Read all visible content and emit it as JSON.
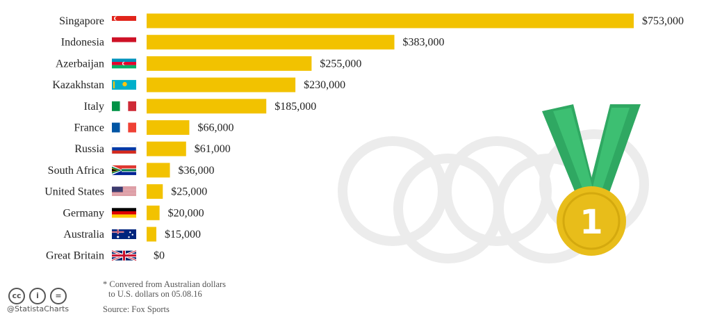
{
  "chart_data": {
    "type": "bar",
    "orientation": "horizontal",
    "categories": [
      "Singapore",
      "Indonesia",
      "Azerbaijan",
      "Kazakhstan",
      "Italy",
      "France",
      "Russia",
      "South Africa",
      "United States",
      "Germany",
      "Australia",
      "Great Britain"
    ],
    "values": [
      753000,
      383000,
      255000,
      230000,
      185000,
      66000,
      61000,
      36000,
      25000,
      20000,
      15000,
      0
    ],
    "value_labels": [
      "$753,000",
      "$383,000",
      "$255,000",
      "$230,000",
      "$185,000",
      "$66,000",
      "$61,000",
      "$36,000",
      "$25,000",
      "$20,000",
      "$15,000",
      "$0"
    ],
    "flags": [
      "singapore-flag-icon",
      "indonesia-flag-icon",
      "azerbaijan-flag-icon",
      "kazakhstan-flag-icon",
      "italy-flag-icon",
      "france-flag-icon",
      "russia-flag-icon",
      "south-africa-flag-icon",
      "united-states-flag-icon",
      "germany-flag-icon",
      "australia-flag-icon",
      "great-britain-flag-icon"
    ],
    "xlim": [
      0,
      753000
    ],
    "bar_color": "#f2c200",
    "grid": false,
    "legend": "none"
  },
  "decoration": {
    "medal_number": "1",
    "medal_icon": "gold-medal-icon",
    "rings_icon": "olympic-rings-icon",
    "ribbon_color": "#3dbf72",
    "medal_color": "#e8bd1a"
  },
  "footer": {
    "license_icons": [
      "creative-commons-icon",
      "attribution-icon",
      "no-derivatives-icon"
    ],
    "license_glyphs": [
      "cc",
      "i",
      "="
    ],
    "handle": "@StatistaCharts",
    "note_line1": "* Convered from Australian dollars",
    "note_line2": "to U.S. dollars on 05.08.16",
    "source": "Source: Fox Sports"
  }
}
